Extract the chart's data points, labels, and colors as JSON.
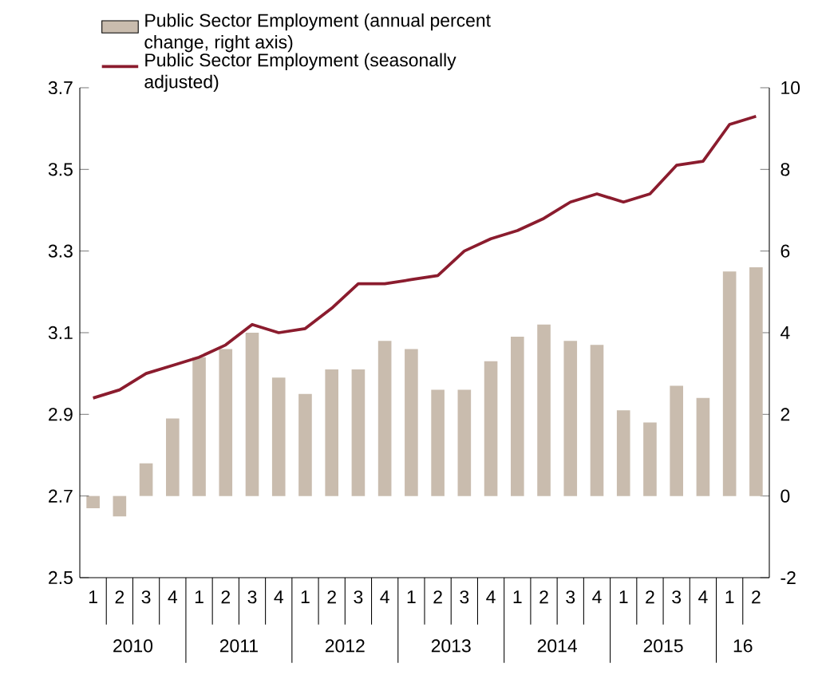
{
  "chart_data": {
    "type": "bar",
    "categories": [
      "1",
      "2",
      "3",
      "4",
      "1",
      "2",
      "3",
      "4",
      "1",
      "2",
      "3",
      "4",
      "1",
      "2",
      "3",
      "4",
      "1",
      "2",
      "3",
      "4",
      "1",
      "2",
      "3",
      "4",
      "1",
      "2"
    ],
    "annotations": [
      "2010",
      "2011",
      "2012",
      "2013",
      "2014",
      "2015",
      "16"
    ],
    "series": [
      {
        "name": "Public Sector Employment (annual percent change, right axis)",
        "axis": "y2",
        "color": "#c9bcae",
        "values": [
          -0.3,
          -0.5,
          0.8,
          1.9,
          3.4,
          3.6,
          4.0,
          2.9,
          2.5,
          3.1,
          3.1,
          3.8,
          3.6,
          2.6,
          2.6,
          3.3,
          3.9,
          4.2,
          3.8,
          3.7,
          2.1,
          1.8,
          2.7,
          2.4,
          5.5,
          5.6
        ]
      },
      {
        "name": "Public Sector Employment (seasonally adjusted)",
        "type": "line",
        "color": "#8b1c2e",
        "values": [
          2.94,
          2.96,
          3.0,
          3.02,
          3.04,
          3.07,
          3.12,
          3.1,
          3.11,
          3.16,
          3.22,
          3.22,
          3.23,
          3.24,
          3.3,
          3.33,
          3.35,
          3.38,
          3.42,
          3.44,
          3.42,
          3.44,
          3.51,
          3.52,
          3.61,
          3.63
        ]
      }
    ],
    "ylim": [
      2.5,
      3.7
    ],
    "yticks": [
      2.5,
      2.7,
      2.9,
      3.1,
      3.3,
      3.5,
      3.7
    ],
    "y2lim": [
      -2,
      10
    ],
    "y2ticks": [
      -2,
      0,
      2,
      4,
      6,
      8,
      10
    ],
    "legend": "top left",
    "grid": false
  }
}
